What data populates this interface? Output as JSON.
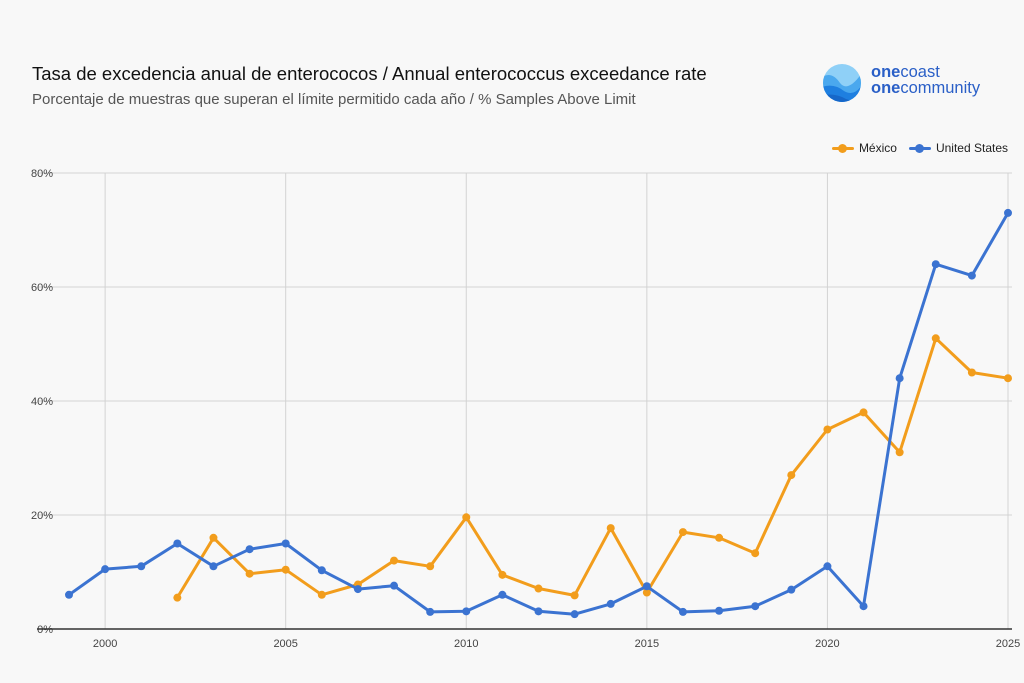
{
  "header": {
    "title": "Tasa de excedencia anual de enterococos / Annual enterococcus exceedance rate",
    "subtitle": "Porcentaje de muestras que superan el límite permitido cada año / % Samples Above Limit"
  },
  "logo": {
    "line1_bold": "one",
    "line1_rest": "coast",
    "line2_bold": "one",
    "line2_rest": "community"
  },
  "chart_data": {
    "type": "line",
    "title": "Tasa de excedencia anual de enterococos / Annual enterococcus exceedance rate",
    "subtitle": "Porcentaje de muestras que superan el límite permitido cada año / % Samples Above Limit",
    "xlabel": "",
    "ylabel": "",
    "xlim": [
      1999,
      2025
    ],
    "ylim": [
      0,
      80
    ],
    "x_ticks": [
      2000,
      2005,
      2010,
      2015,
      2020,
      2025
    ],
    "x_tick_labels": [
      "2000",
      "2005",
      "2010",
      "2015",
      "2020",
      "2025"
    ],
    "y_ticks": [
      0,
      20,
      40,
      60,
      80
    ],
    "y_tick_labels": [
      "0%",
      "20%",
      "40%",
      "60%",
      "80%"
    ],
    "grid": true,
    "legend_position": "top-right",
    "series": [
      {
        "name": "México",
        "color": "#f29d1c",
        "x": [
          2002,
          2003,
          2004,
          2005,
          2006,
          2007,
          2008,
          2009,
          2010,
          2011,
          2012,
          2013,
          2014,
          2015,
          2016,
          2017,
          2018,
          2019,
          2020,
          2021,
          2022,
          2023,
          2024,
          2025
        ],
        "values": [
          5.5,
          16,
          9.7,
          10.4,
          6,
          7.8,
          12,
          11,
          19.6,
          9.5,
          7.1,
          5.9,
          17.7,
          6.4,
          17,
          16,
          13.3,
          27,
          35,
          38,
          31,
          51,
          45,
          44
        ]
      },
      {
        "name": "United States",
        "color": "#3b73d1",
        "x": [
          1999,
          2000,
          2001,
          2002,
          2003,
          2004,
          2005,
          2006,
          2007,
          2008,
          2009,
          2010,
          2011,
          2012,
          2013,
          2014,
          2015,
          2016,
          2017,
          2018,
          2019,
          2020,
          2021,
          2022,
          2023,
          2024,
          2025
        ],
        "values": [
          6,
          10.5,
          11,
          15,
          11,
          14,
          15,
          10.3,
          7,
          7.6,
          3,
          3.1,
          6,
          3.1,
          2.6,
          4.4,
          7.5,
          3,
          3.2,
          4,
          6.9,
          11,
          4,
          44,
          64,
          62,
          73
        ]
      }
    ]
  }
}
